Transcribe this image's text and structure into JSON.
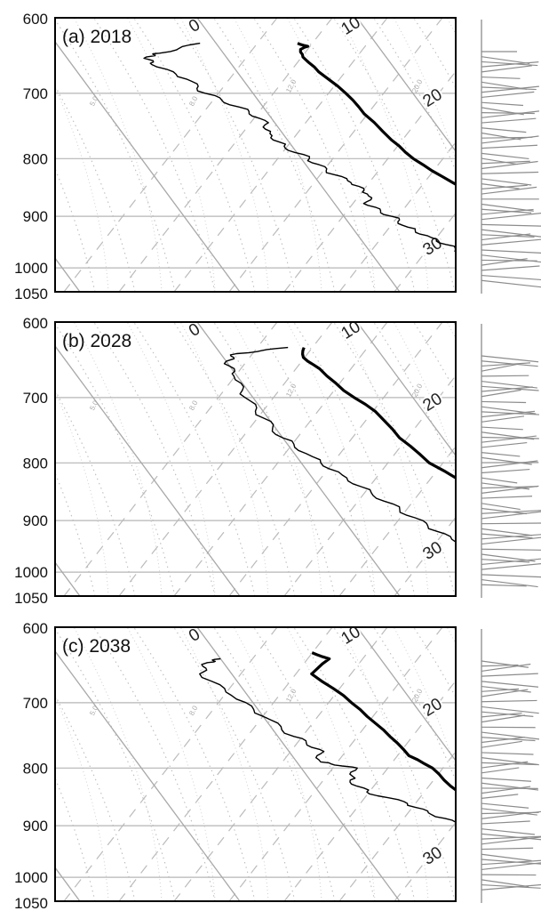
{
  "chart_data": [
    {
      "type": "line",
      "panel_label": "(a) 2018",
      "y_ticks": [
        "600",
        "700",
        "800",
        "900",
        "1000",
        "1050"
      ],
      "p_range": [
        600,
        1050
      ],
      "isotherm_labels": [
        "0",
        "10",
        "20",
        "30"
      ],
      "mixing_ratio_labels": [
        "5.0",
        "8.0",
        "12.0",
        "20.0"
      ],
      "series": [
        {
          "role": "temperature",
          "points": [
            [
              632,
              5.1
            ],
            [
              636,
              5.6
            ],
            [
              640,
              5.0
            ],
            [
              650,
              4.8
            ],
            [
              670,
              5.1
            ],
            [
              700,
              5.8
            ],
            [
              730,
              6.0
            ],
            [
              770,
              6.5
            ],
            [
              800,
              7.0
            ],
            [
              830,
              8.0
            ],
            [
              860,
              9.2
            ],
            [
              890,
              10.4
            ],
            [
              920,
              11.5
            ],
            [
              950,
              12.2
            ],
            [
              980,
              13.2
            ],
            [
              1010,
              14.6
            ]
          ]
        },
        {
          "role": "dewpoint",
          "points": [
            [
              632,
              -1.0
            ],
            [
              645,
              -4.0
            ],
            [
              650,
              -5.0
            ],
            [
              660,
              -5.0
            ],
            [
              680,
              -3.5
            ],
            [
              700,
              -3.0
            ],
            [
              720,
              -1.5
            ],
            [
              740,
              -0.5
            ],
            [
              760,
              -0.8
            ],
            [
              780,
              -0.5
            ],
            [
              800,
              0.5
            ],
            [
              820,
              1.0
            ],
            [
              840,
              2.0
            ],
            [
              860,
              2.5
            ],
            [
              880,
              2.0
            ],
            [
              900,
              3.0
            ],
            [
              920,
              3.5
            ],
            [
              940,
              4.5
            ],
            [
              960,
              5.5
            ],
            [
              980,
              5.8
            ],
            [
              1000,
              6.0
            ],
            [
              1010,
              6.5
            ]
          ]
        }
      ]
    },
    {
      "type": "line",
      "panel_label": "(b) 2028",
      "y_ticks": [
        "600",
        "700",
        "800",
        "900",
        "1000",
        "1050"
      ],
      "p_range": [
        600,
        1050
      ],
      "isotherm_labels": [
        "0",
        "10",
        "20",
        "30"
      ],
      "mixing_ratio_labels": [
        "5.0",
        "8.0",
        "12.0",
        "20.0"
      ],
      "series": [
        {
          "role": "temperature",
          "points": [
            [
              632,
              5.5
            ],
            [
              645,
              5.0
            ],
            [
              660,
              5.5
            ],
            [
              690,
              6.0
            ],
            [
              720,
              7.0
            ],
            [
              760,
              7.3
            ],
            [
              800,
              8.0
            ],
            [
              840,
              9.5
            ],
            [
              870,
              10.3
            ],
            [
              900,
              11.0
            ],
            [
              930,
              11.5
            ],
            [
              960,
              12.0
            ],
            [
              985,
              13.0
            ],
            [
              1010,
              14.2
            ]
          ]
        },
        {
          "role": "dewpoint",
          "points": [
            [
              632,
              4.5
            ],
            [
              640,
              1.0
            ],
            [
              650,
              0.0
            ],
            [
              670,
              -0.2
            ],
            [
              700,
              -0.5
            ],
            [
              730,
              -0.3
            ],
            [
              760,
              0.0
            ],
            [
              790,
              1.0
            ],
            [
              820,
              2.0
            ],
            [
              850,
              3.0
            ],
            [
              880,
              4.0
            ],
            [
              910,
              5.0
            ],
            [
              940,
              6.0
            ],
            [
              970,
              7.0
            ],
            [
              1000,
              7.5
            ],
            [
              1010,
              7.8
            ]
          ]
        }
      ]
    },
    {
      "type": "line",
      "panel_label": "(c) 2038",
      "y_ticks": [
        "600",
        "700",
        "800",
        "900",
        "1000",
        "1050"
      ],
      "p_range": [
        600,
        1050
      ],
      "isotherm_labels": [
        "0",
        "10",
        "20",
        "30"
      ],
      "mixing_ratio_labels": [
        "5.0",
        "8.0",
        "12.0",
        "20.0"
      ],
      "series": [
        {
          "role": "temperature",
          "points": [
            [
              632,
              6.0
            ],
            [
              640,
              6.8
            ],
            [
              660,
              5.0
            ],
            [
              690,
              6.0
            ],
            [
              720,
              6.5
            ],
            [
              750,
              7.0
            ],
            [
              780,
              7.3
            ],
            [
              800,
              8.2
            ],
            [
              830,
              8.5
            ],
            [
              860,
              9.2
            ],
            [
              890,
              9.8
            ],
            [
              920,
              11.0
            ],
            [
              950,
              11.6
            ],
            [
              980,
              12.5
            ],
            [
              1010,
              13.5
            ]
          ]
        },
        {
          "role": "dewpoint",
          "points": [
            [
              640,
              0.0
            ],
            [
              645,
              -1.0
            ],
            [
              660,
              -2.0
            ],
            [
              690,
              -1.0
            ],
            [
              720,
              0.0
            ],
            [
              750,
              1.0
            ],
            [
              770,
              2.0
            ],
            [
              790,
              1.5
            ],
            [
              800,
              3.5
            ],
            [
              820,
              2.5
            ],
            [
              840,
              3.0
            ],
            [
              860,
              5.0
            ],
            [
              880,
              6.0
            ],
            [
              900,
              7.5
            ],
            [
              930,
              8.5
            ],
            [
              960,
              9.0
            ],
            [
              1000,
              9.5
            ],
            [
              1010,
              9.8
            ]
          ]
        }
      ]
    }
  ]
}
